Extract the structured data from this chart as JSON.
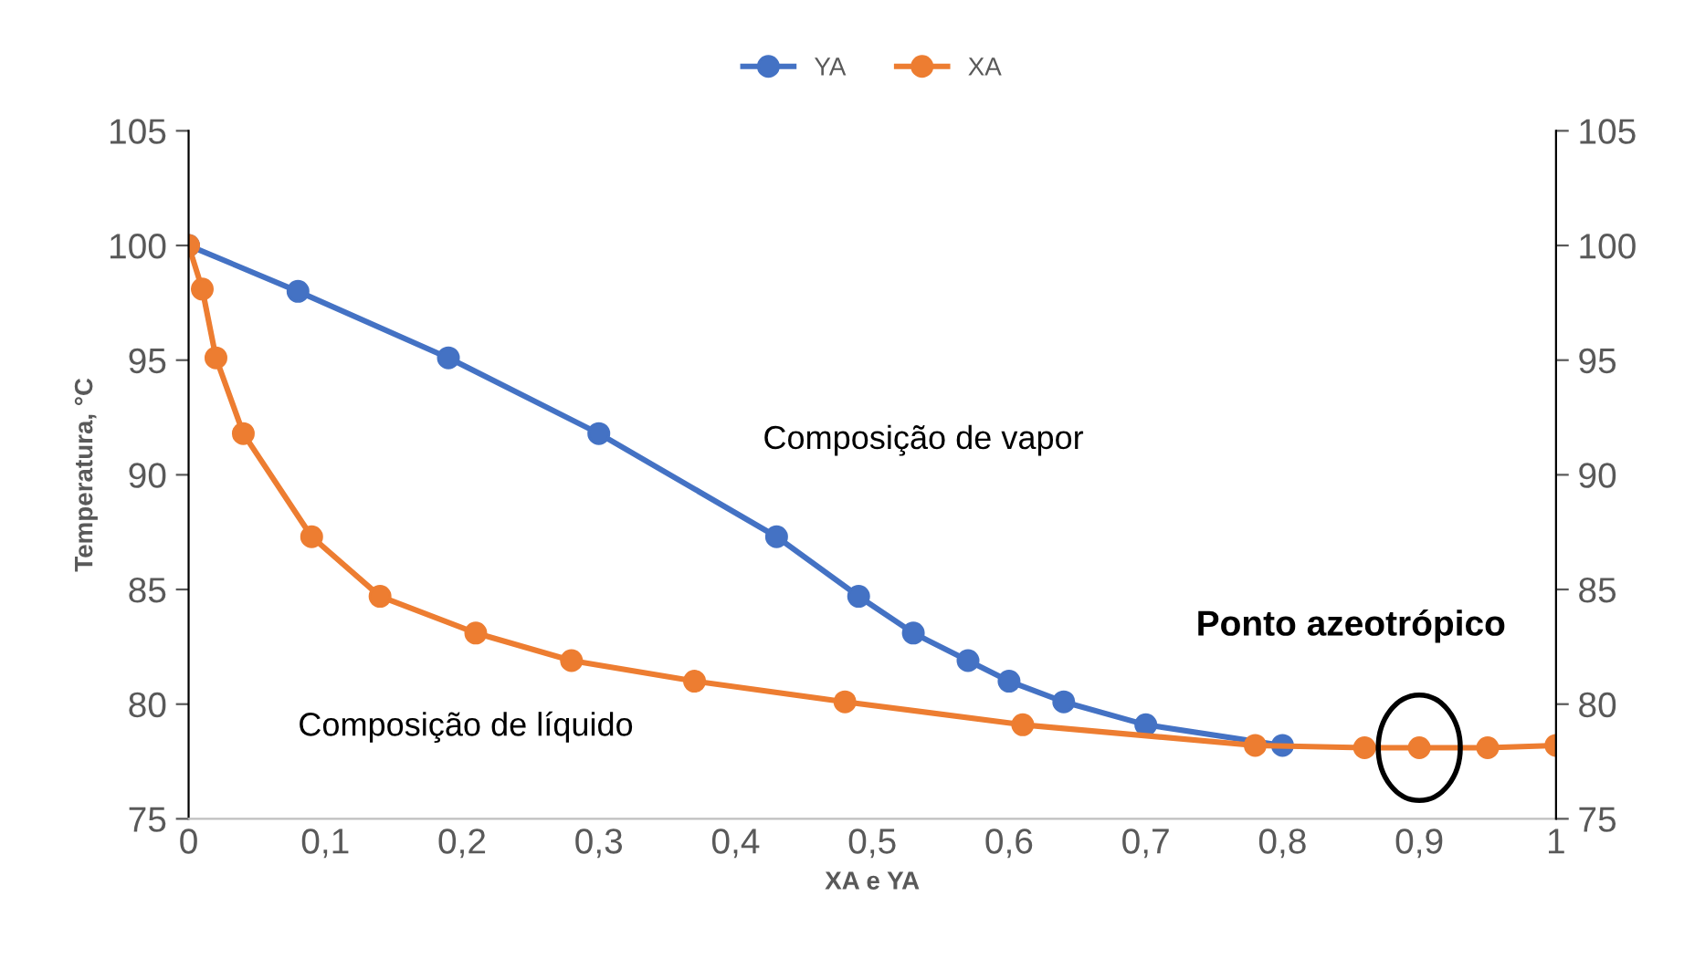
{
  "chart_data": {
    "type": "line",
    "xlabel": "XA e YA",
    "ylabel": "Temperatura, °C",
    "xlim": [
      0,
      1
    ],
    "xticks": [
      0,
      {
        "value": 0.1,
        "label": "0,1"
      },
      {
        "value": 0.2,
        "label": "0,2"
      },
      {
        "value": 0.3,
        "label": "0,3"
      },
      {
        "value": 0.4,
        "label": "0,4"
      },
      {
        "value": 0.5,
        "label": "0,5"
      },
      {
        "value": 0.6,
        "label": "0,6"
      },
      {
        "value": 0.7,
        "label": "0,7"
      },
      {
        "value": 0.8,
        "label": "0,8"
      },
      {
        "value": 0.9,
        "label": "0,9"
      },
      1
    ],
    "ylim": [
      75,
      105
    ],
    "yticks": [
      75,
      80,
      85,
      90,
      95,
      100,
      105
    ],
    "y2lim": [
      75,
      105
    ],
    "y2ticks": [
      75,
      80,
      85,
      90,
      95,
      100,
      105
    ],
    "legend": "top",
    "grid": false,
    "marker": "circle",
    "line_style": "solid",
    "series": [
      {
        "name": "YA",
        "color": "#4472c4",
        "x": [
          0,
          0.08,
          0.19,
          0.3,
          0.43,
          0.49,
          0.53,
          0.57,
          0.6,
          0.64,
          0.7,
          0.8
        ],
        "values": [
          100,
          98,
          95.1,
          91.8,
          87.3,
          84.7,
          83.1,
          81.9,
          81,
          80.1,
          79.1,
          78.2
        ]
      },
      {
        "name": "XA",
        "color": "#ed7d31",
        "x": [
          0,
          0.01,
          0.02,
          0.04,
          0.09,
          0.14,
          0.21,
          0.28,
          0.37,
          0.48,
          0.61,
          0.78,
          0.86,
          0.9,
          0.95,
          1
        ],
        "values": [
          100,
          98.1,
          95.1,
          91.8,
          87.3,
          84.7,
          83.1,
          81.9,
          81,
          80.1,
          79.1,
          78.2,
          78.1,
          78.1,
          78.1,
          78.2
        ]
      }
    ],
    "annotations": [
      "Composição de vapor",
      "Composição de líquido",
      {
        "text": "Ponto azeotrópico",
        "x": 0.9,
        "y": 78.1
      }
    ]
  }
}
